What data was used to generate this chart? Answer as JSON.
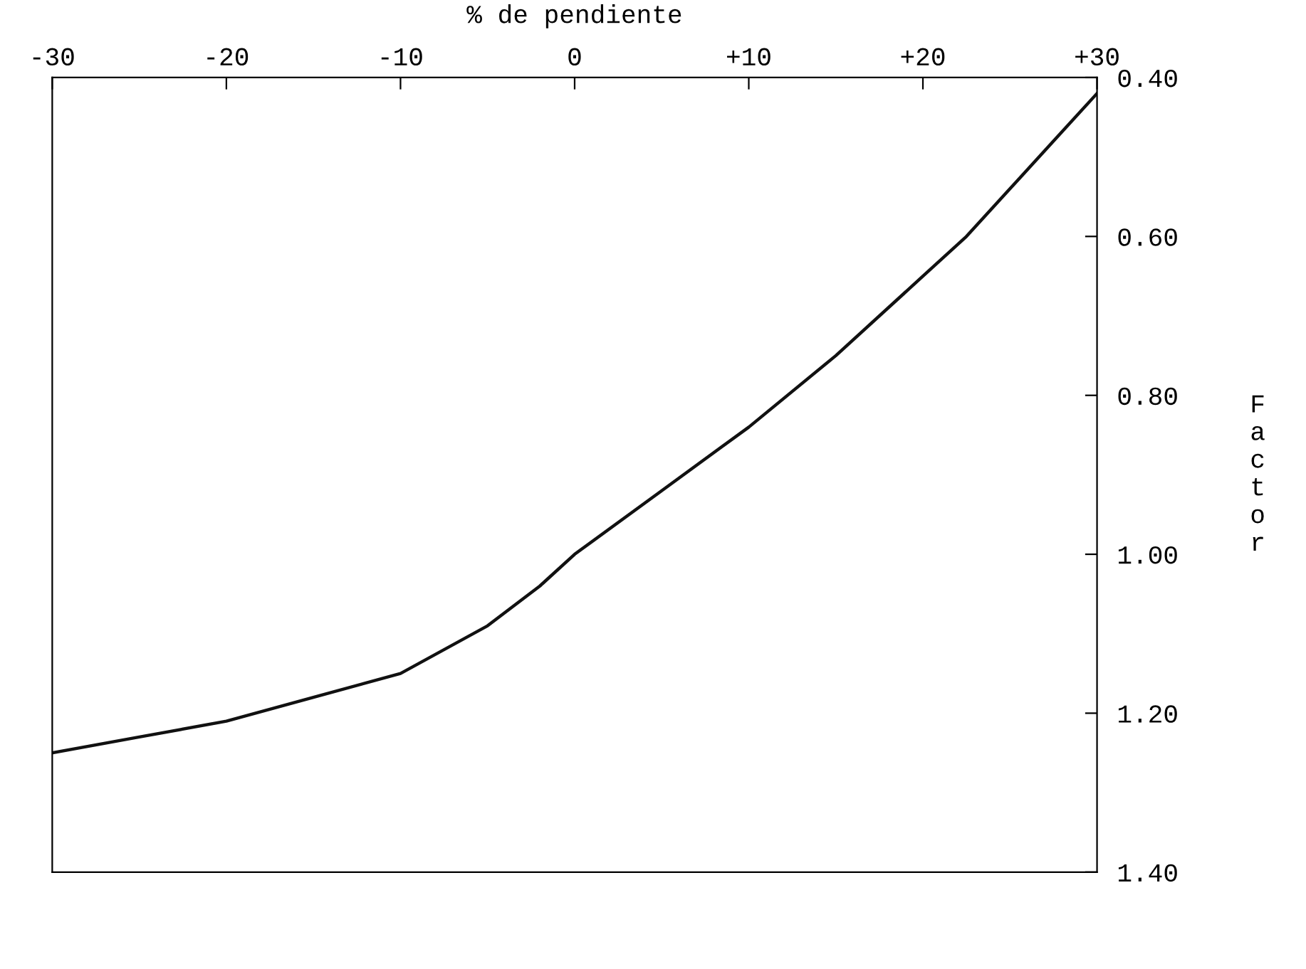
{
  "chart_data": {
    "type": "line",
    "xlabel": "% de pendiente",
    "ylabel": "Factor",
    "x": [
      -30,
      -25,
      -20,
      -15,
      -10,
      -5,
      -2,
      0,
      5,
      10,
      15,
      20,
      22.5,
      25,
      27.5,
      30
    ],
    "series": [
      {
        "color": "#111111",
        "values": [
          1.25,
          1.23,
          1.21,
          1.18,
          1.15,
          1.09,
          1.04,
          1.0,
          0.92,
          0.84,
          0.75,
          0.65,
          0.6,
          0.54,
          0.48,
          0.42
        ]
      }
    ],
    "xlim": [
      -30,
      30
    ],
    "xticks": [
      -30,
      -20,
      -10,
      0,
      {
        "value": 10,
        "label": "+10"
      },
      {
        "value": 20,
        "label": "+20"
      },
      {
        "value": 30,
        "label": "+30"
      }
    ],
    "ylim": [
      1.4,
      0.4
    ],
    "yticks": [
      {
        "value": 0.4,
        "label": "0.40"
      },
      {
        "value": 0.6,
        "label": "0.60"
      },
      {
        "value": 0.8,
        "label": "0.80"
      },
      {
        "value": 1.0,
        "label": "1.00"
      },
      {
        "value": 1.2,
        "label": "1.20"
      },
      {
        "value": 1.4,
        "label": "1.40"
      }
    ],
    "marker": "none",
    "line_style": "solid"
  }
}
